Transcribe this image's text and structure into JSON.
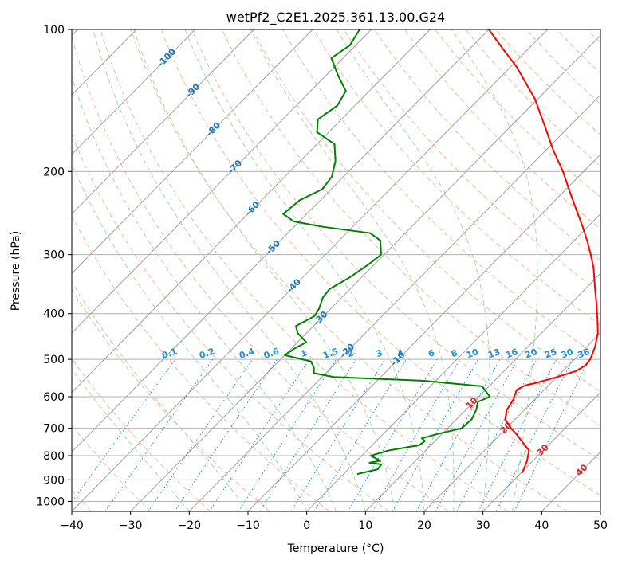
{
  "chart_data": {
    "type": "line",
    "subtype": "skew-t log-p diagram",
    "title": "wetPf2_C2E1.2025.361.13.00.G24",
    "xlabel": "Temperature (°C)",
    "ylabel": "Pressure (hPa)",
    "xlim": [
      -40,
      50
    ],
    "ylim": [
      1050,
      100
    ],
    "x_ticks": [
      -40,
      -30,
      -20,
      -10,
      0,
      10,
      20,
      30,
      40,
      50
    ],
    "x_tick_labels": [
      "−40",
      "−30",
      "−20",
      "−10",
      "0",
      "10",
      "20",
      "30",
      "40",
      "50"
    ],
    "y_ticks": [
      100,
      200,
      300,
      400,
      500,
      600,
      700,
      800,
      900,
      1000
    ],
    "y_tick_labels": [
      "100",
      "200",
      "300",
      "400",
      "500",
      "600",
      "700",
      "800",
      "900",
      "1000"
    ],
    "grid": true,
    "colors": {
      "temperature": "#ff0000",
      "dewpoint": "#008000",
      "isotherm": "#a0a0a0",
      "dry_adiabat": "#f4a582",
      "moist_adiabat": "#a6d8a6",
      "mixing_ratio": "#1f8fe0",
      "label_blue": "#1f77b4",
      "label_red": "#d62728"
    },
    "series": [
      {
        "name": "Temperature",
        "color": "#ff0000",
        "points": [
          {
            "p": 870,
            "t": 30.2
          },
          {
            "p": 820,
            "t": 29
          },
          {
            "p": 800,
            "t": 28.3
          },
          {
            "p": 780,
            "t": 27.6
          },
          {
            "p": 760,
            "t": 26
          },
          {
            "p": 720,
            "t": 22.7
          },
          {
            "p": 700,
            "t": 20.8
          },
          {
            "p": 670,
            "t": 18.3
          },
          {
            "p": 640,
            "t": 17
          },
          {
            "p": 610,
            "t": 16.4
          },
          {
            "p": 580,
            "t": 15.3
          },
          {
            "p": 568,
            "t": 16
          },
          {
            "p": 560,
            "t": 17.6
          },
          {
            "p": 545,
            "t": 20
          },
          {
            "p": 530,
            "t": 22.2
          },
          {
            "p": 515,
            "t": 22.9
          },
          {
            "p": 500,
            "t": 22.7
          },
          {
            "p": 470,
            "t": 21.4
          },
          {
            "p": 440,
            "t": 19.6
          },
          {
            "p": 410,
            "t": 17.1
          },
          {
            "p": 380,
            "t": 14.3
          },
          {
            "p": 350,
            "t": 11.2
          },
          {
            "p": 320,
            "t": 7.9
          },
          {
            "p": 300,
            "t": 5.2
          },
          {
            "p": 280,
            "t": 2.2
          },
          {
            "p": 260,
            "t": -1.2
          },
          {
            "p": 240,
            "t": -5
          },
          {
            "p": 220,
            "t": -9.1
          },
          {
            "p": 200,
            "t": -13.5
          },
          {
            "p": 180,
            "t": -18.8
          },
          {
            "p": 160,
            "t": -24.3
          },
          {
            "p": 140,
            "t": -30.6
          },
          {
            "p": 120,
            "t": -39
          },
          {
            "p": 110,
            "t": -44.3
          },
          {
            "p": 100,
            "t": -50
          }
        ]
      },
      {
        "name": "Dew Point",
        "color": "#008000",
        "points": [
          {
            "p": 875,
            "t": 2.3
          },
          {
            "p": 855,
            "t": 5
          },
          {
            "p": 835,
            "t": 4.8
          },
          {
            "p": 828,
            "t": 2.5
          },
          {
            "p": 820,
            "t": 4
          },
          {
            "p": 800,
            "t": 1.5
          },
          {
            "p": 780,
            "t": 3.7
          },
          {
            "p": 760,
            "t": 8
          },
          {
            "p": 745,
            "t": 8.3
          },
          {
            "p": 735,
            "t": 7.3
          },
          {
            "p": 720,
            "t": 9.2
          },
          {
            "p": 700,
            "t": 12.4
          },
          {
            "p": 670,
            "t": 12.6
          },
          {
            "p": 640,
            "t": 11.8
          },
          {
            "p": 615,
            "t": 10.7
          },
          {
            "p": 600,
            "t": 11.9
          },
          {
            "p": 570,
            "t": 8.8
          },
          {
            "p": 555,
            "t": -2
          },
          {
            "p": 550,
            "t": -10
          },
          {
            "p": 545,
            "t": -18
          },
          {
            "p": 535,
            "t": -22
          },
          {
            "p": 520,
            "t": -23
          },
          {
            "p": 505,
            "t": -24.5
          },
          {
            "p": 490,
            "t": -30
          },
          {
            "p": 475,
            "t": -29.5
          },
          {
            "p": 460,
            "t": -28.5
          },
          {
            "p": 440,
            "t": -31.5
          },
          {
            "p": 425,
            "t": -33
          },
          {
            "p": 405,
            "t": -31.5
          },
          {
            "p": 390,
            "t": -32
          },
          {
            "p": 370,
            "t": -33.2
          },
          {
            "p": 355,
            "t": -33.5
          },
          {
            "p": 335,
            "t": -32
          },
          {
            "p": 315,
            "t": -31
          },
          {
            "p": 300,
            "t": -30.5
          },
          {
            "p": 280,
            "t": -33
          },
          {
            "p": 270,
            "t": -36
          },
          {
            "p": 262,
            "t": -45
          },
          {
            "p": 255,
            "t": -51
          },
          {
            "p": 246,
            "t": -54
          },
          {
            "p": 230,
            "t": -53.5
          },
          {
            "p": 218,
            "t": -51.5
          },
          {
            "p": 205,
            "t": -52
          },
          {
            "p": 190,
            "t": -54
          },
          {
            "p": 175,
            "t": -57
          },
          {
            "p": 165,
            "t": -62
          },
          {
            "p": 155,
            "t": -64
          },
          {
            "p": 145,
            "t": -63
          },
          {
            "p": 135,
            "t": -64
          },
          {
            "p": 125,
            "t": -68
          },
          {
            "p": 115,
            "t": -72
          },
          {
            "p": 108,
            "t": -71
          },
          {
            "p": 100,
            "t": -72
          }
        ]
      }
    ],
    "isotherm_labels": [
      "-100",
      "-90",
      "-80",
      "-70",
      "-60",
      "-50",
      "-40",
      "-30",
      "-20",
      "-10"
    ],
    "isotherm_label_values": [
      -100,
      -90,
      -80,
      -70,
      -60,
      -50,
      -40,
      -30,
      -20,
      -10
    ],
    "mixing_ratio_labels": [
      "0.1",
      "0.2",
      "0.4",
      "0.6",
      "1",
      "1.5",
      "2",
      "3",
      "4",
      "6",
      "8",
      "10",
      "13",
      "16",
      "20",
      "25",
      "30",
      "36"
    ],
    "mixing_ratio_values": [
      0.1,
      0.2,
      0.4,
      0.6,
      1,
      1.5,
      2,
      3,
      4,
      6,
      8,
      10,
      13,
      16,
      20,
      25,
      30,
      36
    ],
    "isotherm_labels_lower": [
      "10",
      "20",
      "30",
      "40"
    ],
    "isotherm_labels_lower_values": [
      10,
      20,
      30,
      40
    ]
  }
}
